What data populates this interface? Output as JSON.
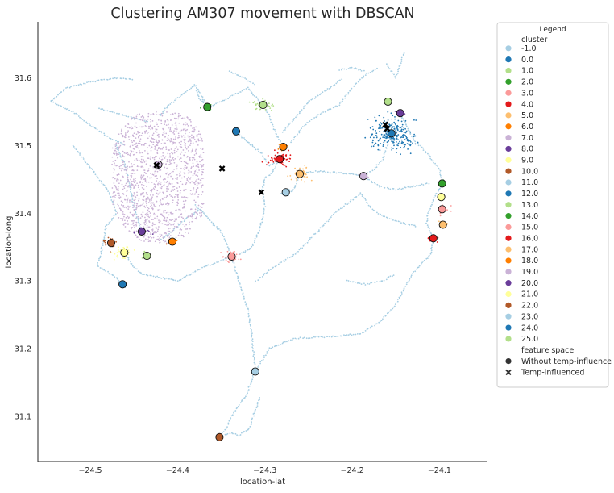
{
  "chart_data": {
    "type": "scatter",
    "title": "Clustering AM307 movement with DBSCAN",
    "xlabel": "location-lat",
    "ylabel": "location-long",
    "xlim": [
      -24.56,
      -24.045
    ],
    "ylim": [
      31.033,
      31.683
    ],
    "xticks": [
      "−24.5",
      "−24.4",
      "−24.3",
      "−24.2",
      "−24.1"
    ],
    "xtick_values": [
      -24.5,
      -24.4,
      -24.3,
      -24.2,
      -24.1
    ],
    "yticks": [
      "31.1",
      "31.2",
      "31.3",
      "31.4",
      "31.5",
      "31.6"
    ],
    "ytick_values": [
      31.1,
      31.2,
      31.3,
      31.4,
      31.5,
      31.6
    ],
    "grid": false,
    "legend": {
      "title": "Legend",
      "placement": "outside-right",
      "cluster_header": "cluster",
      "feature_header": "feature space",
      "clusters": [
        {
          "label": "-1.0",
          "color": "#a6cee3"
        },
        {
          "label": "0.0",
          "color": "#1f78b4"
        },
        {
          "label": "1.0",
          "color": "#b2df8a"
        },
        {
          "label": "2.0",
          "color": "#33a02c"
        },
        {
          "label": "3.0",
          "color": "#fb9a99"
        },
        {
          "label": "4.0",
          "color": "#e31a1c"
        },
        {
          "label": "5.0",
          "color": "#fdbf6f"
        },
        {
          "label": "6.0",
          "color": "#ff7f00"
        },
        {
          "label": "7.0",
          "color": "#cab2d6"
        },
        {
          "label": "8.0",
          "color": "#6a3d9a"
        },
        {
          "label": "9.0",
          "color": "#ffff99"
        },
        {
          "label": "10.0",
          "color": "#b15928"
        },
        {
          "label": "11.0",
          "color": "#a6cee3"
        },
        {
          "label": "12.0",
          "color": "#1f78b4"
        },
        {
          "label": "13.0",
          "color": "#b2df8a"
        },
        {
          "label": "14.0",
          "color": "#33a02c"
        },
        {
          "label": "15.0",
          "color": "#fb9a99"
        },
        {
          "label": "16.0",
          "color": "#e31a1c"
        },
        {
          "label": "17.0",
          "color": "#fdbf6f"
        },
        {
          "label": "18.0",
          "color": "#ff7f00"
        },
        {
          "label": "19.0",
          "color": "#cab2d6"
        },
        {
          "label": "20.0",
          "color": "#6a3d9a"
        },
        {
          "label": "21.0",
          "color": "#ffff99"
        },
        {
          "label": "22.0",
          "color": "#b15928"
        },
        {
          "label": "23.0",
          "color": "#a6cee3"
        },
        {
          "label": "24.0",
          "color": "#1f78b4"
        },
        {
          "label": "25.0",
          "color": "#b2df8a"
        }
      ],
      "features": [
        {
          "label": "Without temp-influence",
          "marker": "circle"
        },
        {
          "label": "Temp-influenced",
          "marker": "x"
        }
      ]
    },
    "clusters": [
      {
        "cluster": 0.0,
        "x": -24.155,
        "y": 31.518,
        "spread_x": 0.02,
        "spread_y": 0.02,
        "n": 260
      },
      {
        "cluster": 1.0,
        "x": -24.302,
        "y": 31.56,
        "spread_x": 0.01,
        "spread_y": 0.008,
        "n": 35
      },
      {
        "cluster": 2.0,
        "x": -24.366,
        "y": 31.557,
        "spread_x": 0.005,
        "spread_y": 0.004,
        "n": 15
      },
      {
        "cluster": 3.0,
        "x": -24.338,
        "y": 31.336,
        "spread_x": 0.008,
        "spread_y": 0.008,
        "n": 35
      },
      {
        "cluster": 4.0,
        "x": -24.283,
        "y": 31.48,
        "spread_x": 0.012,
        "spread_y": 0.008,
        "n": 60
      },
      {
        "cluster": 5.0,
        "x": -24.26,
        "y": 31.458,
        "spread_x": 0.01,
        "spread_y": 0.01,
        "n": 40
      },
      {
        "cluster": 6.0,
        "x": -24.279,
        "y": 31.498,
        "spread_x": 0.004,
        "spread_y": 0.004,
        "n": 12
      },
      {
        "cluster": 7.0,
        "x": -24.422,
        "y": 31.472,
        "spread_x": 0.045,
        "spread_y": 0.05,
        "n": 1600
      },
      {
        "cluster": 8.0,
        "x": -24.145,
        "y": 31.548,
        "spread_x": 0.005,
        "spread_y": 0.004,
        "n": 12
      },
      {
        "cluster": 9.0,
        "x": -24.461,
        "y": 31.342,
        "spread_x": 0.012,
        "spread_y": 0.01,
        "n": 30
      },
      {
        "cluster": 10.0,
        "x": -24.476,
        "y": 31.356,
        "spread_x": 0.006,
        "spread_y": 0.008,
        "n": 20
      },
      {
        "cluster": 11.0,
        "x": -24.276,
        "y": 31.431,
        "spread_x": 0.005,
        "spread_y": 0.005,
        "n": 12
      },
      {
        "cluster": 12.0,
        "x": -24.333,
        "y": 31.521,
        "spread_x": 0.003,
        "spread_y": 0.003,
        "n": 6
      },
      {
        "cluster": 13.0,
        "x": -24.435,
        "y": 31.337,
        "spread_x": 0.004,
        "spread_y": 0.004,
        "n": 8
      },
      {
        "cluster": 14.0,
        "x": -24.097,
        "y": 31.444,
        "spread_x": 0.003,
        "spread_y": 0.004,
        "n": 8
      },
      {
        "cluster": 15.0,
        "x": -24.097,
        "y": 31.406,
        "spread_x": 0.007,
        "spread_y": 0.006,
        "n": 16
      },
      {
        "cluster": 16.0,
        "x": -24.107,
        "y": 31.363,
        "spread_x": 0.006,
        "spread_y": 0.004,
        "n": 12
      },
      {
        "cluster": 17.0,
        "x": -24.096,
        "y": 31.383,
        "spread_x": 0.005,
        "spread_y": 0.004,
        "n": 10
      },
      {
        "cluster": 18.0,
        "x": -24.406,
        "y": 31.358,
        "spread_x": 0.006,
        "spread_y": 0.003,
        "n": 10
      },
      {
        "cluster": 19.0,
        "x": -24.187,
        "y": 31.455,
        "spread_x": 0.006,
        "spread_y": 0.005,
        "n": 14
      },
      {
        "cluster": 20.0,
        "x": -24.441,
        "y": 31.373,
        "spread_x": 0.01,
        "spread_y": 0.003,
        "n": 14
      },
      {
        "cluster": 21.0,
        "x": -24.098,
        "y": 31.424,
        "spread_x": 0.004,
        "spread_y": 0.004,
        "n": 8
      },
      {
        "cluster": 22.0,
        "x": -24.352,
        "y": 31.069,
        "spread_x": 0.004,
        "spread_y": 0.003,
        "n": 6
      },
      {
        "cluster": 23.0,
        "x": -24.311,
        "y": 31.166,
        "spread_x": 0.003,
        "spread_y": 0.003,
        "n": 6
      },
      {
        "cluster": 24.0,
        "x": -24.463,
        "y": 31.295,
        "spread_x": 0.004,
        "spread_y": 0.004,
        "n": 8
      },
      {
        "cluster": 25.0,
        "x": -24.159,
        "y": 31.565,
        "spread_x": 0.004,
        "spread_y": 0.003,
        "n": 8
      }
    ],
    "temp_influenced": [
      {
        "x": -24.424,
        "y": 31.471
      },
      {
        "x": -24.349,
        "y": 31.466
      },
      {
        "x": -24.304,
        "y": 31.431
      },
      {
        "x": -24.162,
        "y": 31.531
      },
      {
        "x": -24.16,
        "y": 31.525
      }
    ],
    "noise_paths": [
      [
        [
          -24.545,
          31.566
        ],
        [
          -24.528,
          31.585
        ],
        [
          -24.5,
          31.594
        ],
        [
          -24.47,
          31.6
        ],
        [
          -24.45,
          31.598
        ]
      ],
      [
        [
          -24.545,
          31.566
        ],
        [
          -24.52,
          31.55
        ],
        [
          -24.5,
          31.53
        ],
        [
          -24.478,
          31.512
        ],
        [
          -24.46,
          31.5
        ]
      ],
      [
        [
          -24.52,
          31.5
        ],
        [
          -24.495,
          31.46
        ],
        [
          -24.478,
          31.43
        ],
        [
          -24.47,
          31.4
        ]
      ],
      [
        [
          -24.47,
          31.4
        ],
        [
          -24.482,
          31.38
        ],
        [
          -24.488,
          31.34
        ],
        [
          -24.492,
          31.322
        ]
      ],
      [
        [
          -24.492,
          31.322
        ],
        [
          -24.47,
          31.305
        ],
        [
          -24.463,
          31.295
        ]
      ],
      [
        [
          -24.461,
          31.342
        ],
        [
          -24.45,
          31.32
        ],
        [
          -24.44,
          31.31
        ],
        [
          -24.4,
          31.3
        ],
        [
          -24.37,
          31.32
        ],
        [
          -24.338,
          31.336
        ]
      ],
      [
        [
          -24.338,
          31.336
        ],
        [
          -24.33,
          31.3
        ],
        [
          -24.32,
          31.26
        ],
        [
          -24.315,
          31.22
        ],
        [
          -24.311,
          31.166
        ]
      ],
      [
        [
          -24.311,
          31.166
        ],
        [
          -24.322,
          31.13
        ],
        [
          -24.338,
          31.1
        ],
        [
          -24.345,
          31.08
        ],
        [
          -24.352,
          31.069
        ]
      ],
      [
        [
          -24.352,
          31.069
        ],
        [
          -24.34,
          31.075
        ],
        [
          -24.33,
          31.072
        ],
        [
          -24.318,
          31.08
        ],
        [
          -24.312,
          31.105
        ],
        [
          -24.305,
          31.13
        ]
      ],
      [
        [
          -24.311,
          31.166
        ],
        [
          -24.295,
          31.2
        ],
        [
          -24.265,
          31.215
        ],
        [
          -24.22,
          31.218
        ],
        [
          -24.19,
          31.222
        ],
        [
          -24.168,
          31.24
        ]
      ],
      [
        [
          -24.168,
          31.24
        ],
        [
          -24.15,
          31.265
        ],
        [
          -24.14,
          31.29
        ],
        [
          -24.128,
          31.315
        ],
        [
          -24.11,
          31.34
        ],
        [
          -24.107,
          31.363
        ]
      ],
      [
        [
          -24.206,
          31.3
        ],
        [
          -24.185,
          31.295
        ],
        [
          -24.165,
          31.3
        ],
        [
          -24.15,
          31.31
        ]
      ],
      [
        [
          -24.31,
          31.3
        ],
        [
          -24.29,
          31.32
        ],
        [
          -24.265,
          31.34
        ],
        [
          -24.24,
          31.372
        ],
        [
          -24.22,
          31.4
        ],
        [
          -24.19,
          31.43
        ]
      ],
      [
        [
          -24.38,
          31.412
        ],
        [
          -24.37,
          31.4
        ],
        [
          -24.36,
          31.385
        ],
        [
          -24.35,
          31.372
        ],
        [
          -24.338,
          31.336
        ]
      ],
      [
        [
          -24.42,
          31.36
        ],
        [
          -24.405,
          31.375
        ],
        [
          -24.39,
          31.392
        ],
        [
          -24.375,
          31.405
        ]
      ],
      [
        [
          -24.366,
          31.557
        ],
        [
          -24.35,
          31.565
        ],
        [
          -24.335,
          31.575
        ],
        [
          -24.32,
          31.585
        ],
        [
          -24.302,
          31.56
        ]
      ],
      [
        [
          -24.366,
          31.557
        ],
        [
          -24.375,
          31.57
        ],
        [
          -24.38,
          31.59
        ]
      ],
      [
        [
          -24.333,
          31.521
        ],
        [
          -24.32,
          31.505
        ],
        [
          -24.305,
          31.49
        ],
        [
          -24.295,
          31.47
        ],
        [
          -24.283,
          31.48
        ]
      ],
      [
        [
          -24.302,
          31.56
        ],
        [
          -24.295,
          31.545
        ],
        [
          -24.29,
          31.525
        ],
        [
          -24.279,
          31.498
        ]
      ],
      [
        [
          -24.283,
          31.48
        ],
        [
          -24.292,
          31.46
        ],
        [
          -24.3,
          31.452
        ],
        [
          -24.303,
          31.435
        ]
      ],
      [
        [
          -24.26,
          31.458
        ],
        [
          -24.24,
          31.462
        ],
        [
          -24.22,
          31.46
        ],
        [
          -24.2,
          31.458
        ],
        [
          -24.187,
          31.455
        ]
      ],
      [
        [
          -24.187,
          31.455
        ],
        [
          -24.175,
          31.465
        ],
        [
          -24.165,
          31.48
        ],
        [
          -24.16,
          31.5
        ],
        [
          -24.155,
          31.518
        ]
      ],
      [
        [
          -24.27,
          31.505
        ],
        [
          -24.255,
          31.53
        ],
        [
          -24.235,
          31.548
        ],
        [
          -24.215,
          31.56
        ],
        [
          -24.2,
          31.585
        ],
        [
          -24.185,
          31.605
        ],
        [
          -24.17,
          31.615
        ]
      ],
      [
        [
          -24.28,
          31.52
        ],
        [
          -24.262,
          31.545
        ],
        [
          -24.25,
          31.565
        ],
        [
          -24.232,
          31.58
        ],
        [
          -24.21,
          31.6
        ]
      ],
      [
        [
          -24.16,
          31.62
        ],
        [
          -24.15,
          31.6
        ],
        [
          -24.14,
          31.64
        ]
      ],
      [
        [
          -24.215,
          31.612
        ],
        [
          -24.2,
          31.615
        ],
        [
          -24.185,
          31.61
        ]
      ],
      [
        [
          -24.145,
          31.548
        ],
        [
          -24.138,
          31.53
        ],
        [
          -24.13,
          31.51
        ],
        [
          -24.115,
          31.49
        ],
        [
          -24.1,
          31.465
        ],
        [
          -24.097,
          31.444
        ]
      ],
      [
        [
          -24.097,
          31.444
        ],
        [
          -24.105,
          31.425
        ],
        [
          -24.112,
          31.405
        ],
        [
          -24.115,
          31.385
        ],
        [
          -24.107,
          31.363
        ]
      ],
      [
        [
          -24.187,
          31.455
        ],
        [
          -24.17,
          31.44
        ],
        [
          -24.15,
          31.435
        ],
        [
          -24.13,
          31.44
        ],
        [
          -24.11,
          31.445
        ]
      ],
      [
        [
          -24.19,
          31.43
        ],
        [
          -24.18,
          31.41
        ],
        [
          -24.165,
          31.395
        ],
        [
          -24.14,
          31.385
        ],
        [
          -24.125,
          31.38
        ]
      ],
      [
        [
          -24.26,
          31.458
        ],
        [
          -24.268,
          31.432
        ],
        [
          -24.276,
          31.431
        ]
      ],
      [
        [
          -24.303,
          31.435
        ],
        [
          -24.3,
          31.41
        ],
        [
          -24.305,
          31.38
        ],
        [
          -24.315,
          31.35
        ],
        [
          -24.33,
          31.338
        ]
      ],
      [
        [
          -24.42,
          31.545
        ],
        [
          -24.41,
          31.56
        ],
        [
          -24.395,
          31.575
        ],
        [
          -24.38,
          31.59
        ],
        [
          -24.366,
          31.557
        ]
      ],
      [
        [
          -24.47,
          31.5
        ],
        [
          -24.46,
          31.47
        ],
        [
          -24.455,
          31.44
        ],
        [
          -24.45,
          31.41
        ],
        [
          -24.441,
          31.373
        ]
      ],
      [
        [
          -24.34,
          31.61
        ],
        [
          -24.325,
          31.6
        ],
        [
          -24.31,
          31.59
        ]
      ],
      [
        [
          -24.49,
          31.555
        ],
        [
          -24.47,
          31.548
        ],
        [
          -24.45,
          31.54
        ],
        [
          -24.432,
          31.535
        ]
      ]
    ]
  }
}
